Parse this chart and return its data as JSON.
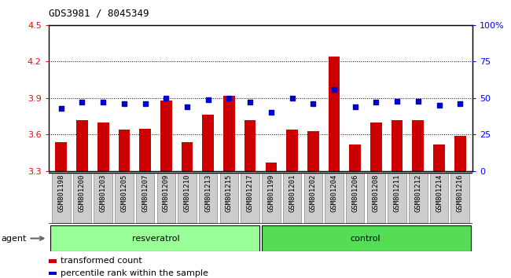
{
  "title": "GDS3981 / 8045349",
  "samples": [
    "GSM801198",
    "GSM801200",
    "GSM801203",
    "GSM801205",
    "GSM801207",
    "GSM801209",
    "GSM801210",
    "GSM801213",
    "GSM801215",
    "GSM801217",
    "GSM801199",
    "GSM801201",
    "GSM801202",
    "GSM801204",
    "GSM801206",
    "GSM801208",
    "GSM801211",
    "GSM801212",
    "GSM801214",
    "GSM801216"
  ],
  "bar_values": [
    3.54,
    3.72,
    3.7,
    3.64,
    3.65,
    3.88,
    3.54,
    3.76,
    3.915,
    3.72,
    3.37,
    3.64,
    3.63,
    4.24,
    3.52,
    3.7,
    3.72,
    3.72,
    3.52,
    3.59
  ],
  "pct_values": [
    43,
    47,
    47,
    46,
    46,
    50,
    44,
    49,
    50,
    47,
    40,
    50,
    46,
    56,
    44,
    47,
    48,
    48,
    45,
    46
  ],
  "ylim_min": 3.3,
  "ylim_max": 4.5,
  "yticks": [
    3.3,
    3.6,
    3.9,
    4.2,
    4.5
  ],
  "right_ytick_pcts": [
    0,
    25,
    50,
    75,
    100
  ],
  "right_ytick_labels": [
    "0",
    "25",
    "50",
    "75",
    "100%"
  ],
  "bar_color": "#cc0000",
  "marker_color": "#0000cc",
  "resveratrol_color": "#99ff99",
  "control_color": "#55dd55",
  "sample_bg_color": "#cccccc",
  "legend_bar_label": "transformed count",
  "legend_marker_label": "percentile rank within the sample",
  "group_label": "agent",
  "bar_width": 0.55,
  "n_resveratrol": 10,
  "n_control": 10
}
